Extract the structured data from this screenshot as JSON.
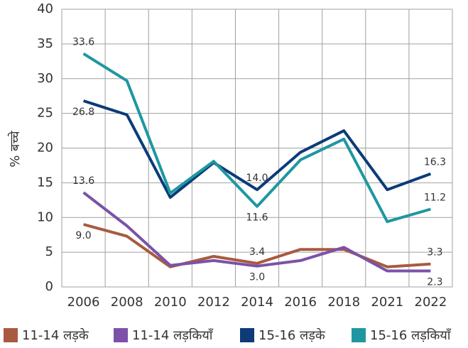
{
  "chart_data": {
    "type": "line",
    "y_label": "% बच्चे",
    "categories": [
      "2006",
      "2008",
      "2010",
      "2012",
      "2014",
      "2016",
      "2018",
      "2021",
      "2022"
    ],
    "ylim": [
      0,
      40
    ],
    "yticks": [
      0,
      5,
      10,
      15,
      20,
      25,
      30,
      35,
      40
    ],
    "grid": true,
    "series": [
      {
        "name": "11-14 लड़के",
        "color": "#a85a40",
        "values": [
          9.0,
          7.3,
          2.9,
          4.4,
          3.4,
          5.4,
          5.4,
          2.9,
          3.3
        ],
        "value_labels": [
          "9.0",
          null,
          null,
          null,
          "3.4",
          null,
          null,
          null,
          "3.3"
        ]
      },
      {
        "name": "11-14 लड़कियाँ",
        "color": "#7b52a8",
        "values": [
          13.6,
          8.8,
          3.1,
          3.8,
          3.0,
          3.8,
          5.7,
          2.3,
          2.3
        ],
        "value_labels": [
          "13.6",
          null,
          null,
          null,
          "3.0",
          null,
          null,
          null,
          "2.3"
        ]
      },
      {
        "name": "15-16 लड़के",
        "color": "#0c3b78",
        "values": [
          26.8,
          24.8,
          12.9,
          17.9,
          14.0,
          19.4,
          22.5,
          14.0,
          16.3
        ],
        "value_labels": [
          "26.8",
          null,
          null,
          null,
          "14.0",
          null,
          null,
          null,
          "16.3"
        ]
      },
      {
        "name": "15-16 लड़कियाँ",
        "color": "#1f97a1",
        "values": [
          33.6,
          29.7,
          13.5,
          18.1,
          11.6,
          18.3,
          21.3,
          9.4,
          11.2
        ],
        "value_labels": [
          "33.6",
          null,
          null,
          null,
          "11.6",
          null,
          null,
          null,
          "11.2"
        ]
      }
    ]
  }
}
